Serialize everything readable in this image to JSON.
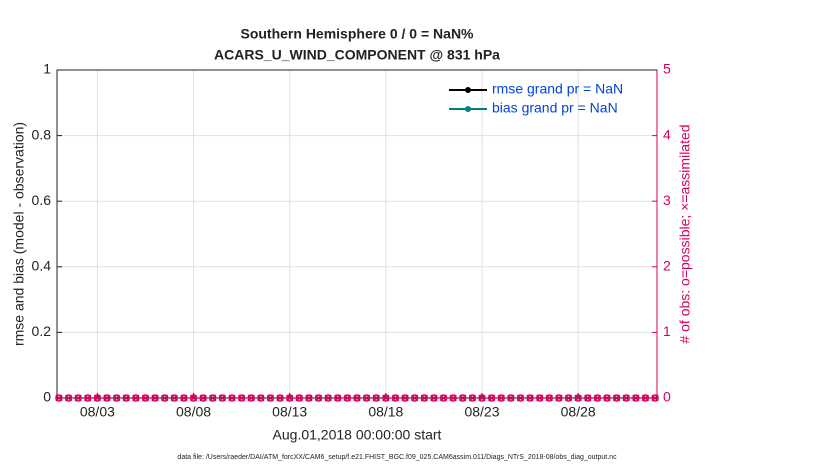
{
  "chart_data": {
    "type": "line",
    "title": "Southern Hemisphere 0 / 0 = NaN%",
    "subtitle": "ACARS_U_WIND_COMPONENT @ 831 hPa",
    "y_label": "rmse and bias (model - observation)",
    "y2_label": "# of obs: o=possible; ×=assimilated",
    "x_label": "Aug.01,2018 00:00:00 start",
    "footnote": "data file: /Users/raeder/DAI/ATM_forcXX/CAM6_setup/f.e21.FHIST_BGC.f09_025.CAM6assim.011/Diags_NTrS_2018-08/obs_diag_output.nc",
    "x": [
      1,
      1.5,
      2,
      2.5,
      3,
      3.5,
      4,
      4.5,
      5,
      5.5,
      6,
      6.5,
      7,
      7.5,
      8,
      8.5,
      9,
      9.5,
      10,
      10.5,
      11,
      11.5,
      12,
      12.5,
      13,
      13.5,
      14,
      14.5,
      15,
      15.5,
      16,
      16.5,
      17,
      17.5,
      18,
      18.5,
      19,
      19.5,
      20,
      20.5,
      21,
      21.5,
      22,
      22.5,
      23,
      23.5,
      24,
      24.5,
      25,
      25.5,
      26,
      26.5,
      27,
      27.5,
      28,
      28.5,
      29,
      29.5,
      30,
      30.5,
      31,
      31.5,
      32
    ],
    "xlim": [
      0.9,
      32.1
    ],
    "xticks": [
      {
        "value": 3,
        "label": "08/03"
      },
      {
        "value": 8,
        "label": "08/08"
      },
      {
        "value": 13,
        "label": "08/13"
      },
      {
        "value": 18,
        "label": "08/18"
      },
      {
        "value": 23,
        "label": "08/23"
      },
      {
        "value": 28,
        "label": "08/28"
      }
    ],
    "ylim": [
      0,
      1
    ],
    "yticks": [
      0,
      0.2,
      0.4,
      0.6,
      0.8,
      1
    ],
    "y2lim": [
      0,
      5
    ],
    "y2ticks": [
      0,
      1,
      2,
      3,
      4,
      5
    ],
    "grid": true,
    "legend": "upper right",
    "series": [
      {
        "name": "rmse grand pr = NaN",
        "color": "#000000",
        "marker": "dot",
        "values": [
          null,
          null,
          null,
          null,
          null,
          null,
          null,
          null,
          null,
          null,
          null,
          null,
          null,
          null,
          null,
          null,
          null,
          null,
          null,
          null,
          null,
          null,
          null,
          null,
          null,
          null,
          null,
          null,
          null,
          null,
          null,
          null,
          null,
          null,
          null,
          null,
          null,
          null,
          null,
          null,
          null,
          null,
          null,
          null,
          null,
          null,
          null,
          null,
          null,
          null,
          null,
          null,
          null,
          null,
          null,
          null,
          null,
          null,
          null,
          null,
          null,
          null,
          null
        ]
      },
      {
        "name": "bias grand pr = NaN",
        "color": "#008080",
        "marker": "dot",
        "values": [
          null,
          null,
          null,
          null,
          null,
          null,
          null,
          null,
          null,
          null,
          null,
          null,
          null,
          null,
          null,
          null,
          null,
          null,
          null,
          null,
          null,
          null,
          null,
          null,
          null,
          null,
          null,
          null,
          null,
          null,
          null,
          null,
          null,
          null,
          null,
          null,
          null,
          null,
          null,
          null,
          null,
          null,
          null,
          null,
          null,
          null,
          null,
          null,
          null,
          null,
          null,
          null,
          null,
          null,
          null,
          null,
          null,
          null,
          null,
          null,
          null,
          null,
          null
        ]
      },
      {
        "axis": "y2",
        "color": "#d6005f",
        "marker": "circle",
        "values": [
          0,
          0,
          0,
          0,
          0,
          0,
          0,
          0,
          0,
          0,
          0,
          0,
          0,
          0,
          0,
          0,
          0,
          0,
          0,
          0,
          0,
          0,
          0,
          0,
          0,
          0,
          0,
          0,
          0,
          0,
          0,
          0,
          0,
          0,
          0,
          0,
          0,
          0,
          0,
          0,
          0,
          0,
          0,
          0,
          0,
          0,
          0,
          0,
          0,
          0,
          0,
          0,
          0,
          0,
          0,
          0,
          0,
          0,
          0,
          0,
          0,
          0,
          0
        ]
      },
      {
        "axis": "y2",
        "color": "#d6005f",
        "marker": "cross",
        "values": [
          0,
          0,
          0,
          0,
          0,
          0,
          0,
          0,
          0,
          0,
          0,
          0,
          0,
          0,
          0,
          0,
          0,
          0,
          0,
          0,
          0,
          0,
          0,
          0,
          0,
          0,
          0,
          0,
          0,
          0,
          0,
          0,
          0,
          0,
          0,
          0,
          0,
          0,
          0,
          0,
          0,
          0,
          0,
          0,
          0,
          0,
          0,
          0,
          0,
          0,
          0,
          0,
          0,
          0,
          0,
          0,
          0,
          0,
          0,
          0,
          0,
          0,
          0
        ]
      }
    ]
  }
}
